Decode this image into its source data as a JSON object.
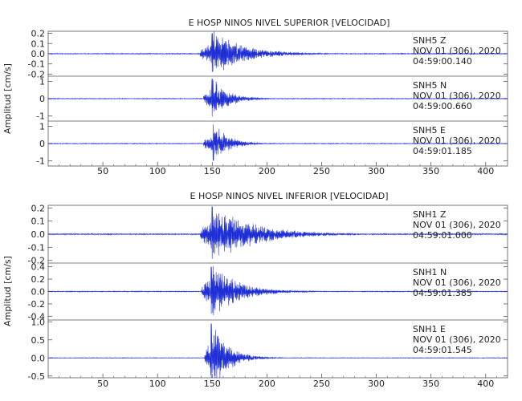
{
  "chart_data": [
    {
      "type": "line",
      "title": "E HOSP NINOS NIVEL SUPERIOR [VELOCIDAD]",
      "ylabel": "Amplitud [cm/s]",
      "xlim": [
        0,
        420
      ],
      "xticks": [
        50,
        100,
        150,
        200,
        250,
        300,
        350,
        400
      ],
      "traces": [
        {
          "station": "SNH5",
          "component": "Z",
          "date": "NOV 01 (306), 2020",
          "time": "04:59:00.140",
          "ylim": [
            -0.22,
            0.22
          ],
          "yticks": [
            0.2,
            0.1,
            0.0,
            -0.1,
            -0.2
          ],
          "yticklabels": [
            "0.2",
            "0.1",
            "0.0",
            "-0.1",
            "-0.2"
          ],
          "onset": 139,
          "peak_time": 150,
          "peak_amp": 0.2,
          "decay": 28,
          "noise": 0.004,
          "seed": 11
        },
        {
          "station": "SNH5",
          "component": "N",
          "date": "NOV 01 (306), 2020",
          "time": "04:59:00.660",
          "ylim": [
            -1.3,
            1.3
          ],
          "yticks": [
            1,
            0,
            -1
          ],
          "yticklabels": [
            "1",
            "0",
            "-1"
          ],
          "onset": 142,
          "peak_time": 150,
          "peak_amp": 1.15,
          "decay": 14,
          "noise": 0.02,
          "seed": 23
        },
        {
          "station": "SNH5",
          "component": "E",
          "date": "NOV 01 (306), 2020",
          "time": "04:59:01.185",
          "ylim": [
            -1.3,
            1.3
          ],
          "yticks": [
            1,
            0,
            -1
          ],
          "yticklabels": [
            "1",
            "0",
            "-1"
          ],
          "onset": 142,
          "peak_time": 151,
          "peak_amp": 1.1,
          "decay": 13,
          "noise": 0.02,
          "seed": 37
        }
      ]
    },
    {
      "type": "line",
      "title": "E HOSP NINOS NIVEL INFERIOR [VELOCIDAD]",
      "ylabel": "Amplitud [cm/s]",
      "xlim": [
        0,
        420
      ],
      "xticks": [
        50,
        100,
        150,
        200,
        250,
        300,
        350,
        400
      ],
      "traces": [
        {
          "station": "SNH1",
          "component": "Z",
          "date": "NOV 01 (306), 2020",
          "time": "04:59:01.000",
          "ylim": [
            -0.22,
            0.22
          ],
          "yticks": [
            0.2,
            0.1,
            0.0,
            -0.1,
            -0.2
          ],
          "yticklabels": [
            "0.2",
            "0.1",
            "0.0",
            "-0.1",
            "-0.2"
          ],
          "onset": 139,
          "peak_time": 150,
          "peak_amp": 0.21,
          "decay": 35,
          "noise": 0.004,
          "seed": 41
        },
        {
          "station": "SNH1",
          "component": "N",
          "date": "NOV 01 (306), 2020",
          "time": "04:59:01.385",
          "ylim": [
            -0.46,
            0.46
          ],
          "yticks": [
            0.4,
            0.2,
            0.0,
            -0.2,
            -0.4
          ],
          "yticklabels": [
            "0.4",
            "0.2",
            "0.0",
            "-0.2",
            "-0.4"
          ],
          "onset": 140,
          "peak_time": 149,
          "peak_amp": 0.4,
          "decay": 24,
          "noise": 0.006,
          "seed": 53
        },
        {
          "station": "SNH1",
          "component": "E",
          "date": "NOV 01 (306), 2020",
          "time": "04:59:01.545",
          "ylim": [
            -0.55,
            1.05
          ],
          "yticks": [
            1.0,
            0.5,
            0.0,
            -0.5
          ],
          "yticklabels": [
            "1.0",
            "0.5",
            "0.0",
            "-0.5"
          ],
          "onset": 143,
          "peak_time": 149,
          "peak_amp": 0.95,
          "decay": 14,
          "noise": 0.008,
          "seed": 67
        }
      ]
    }
  ],
  "colors": {
    "trace": "#1f2fd6",
    "axis": "#555555",
    "text": "#333333"
  }
}
